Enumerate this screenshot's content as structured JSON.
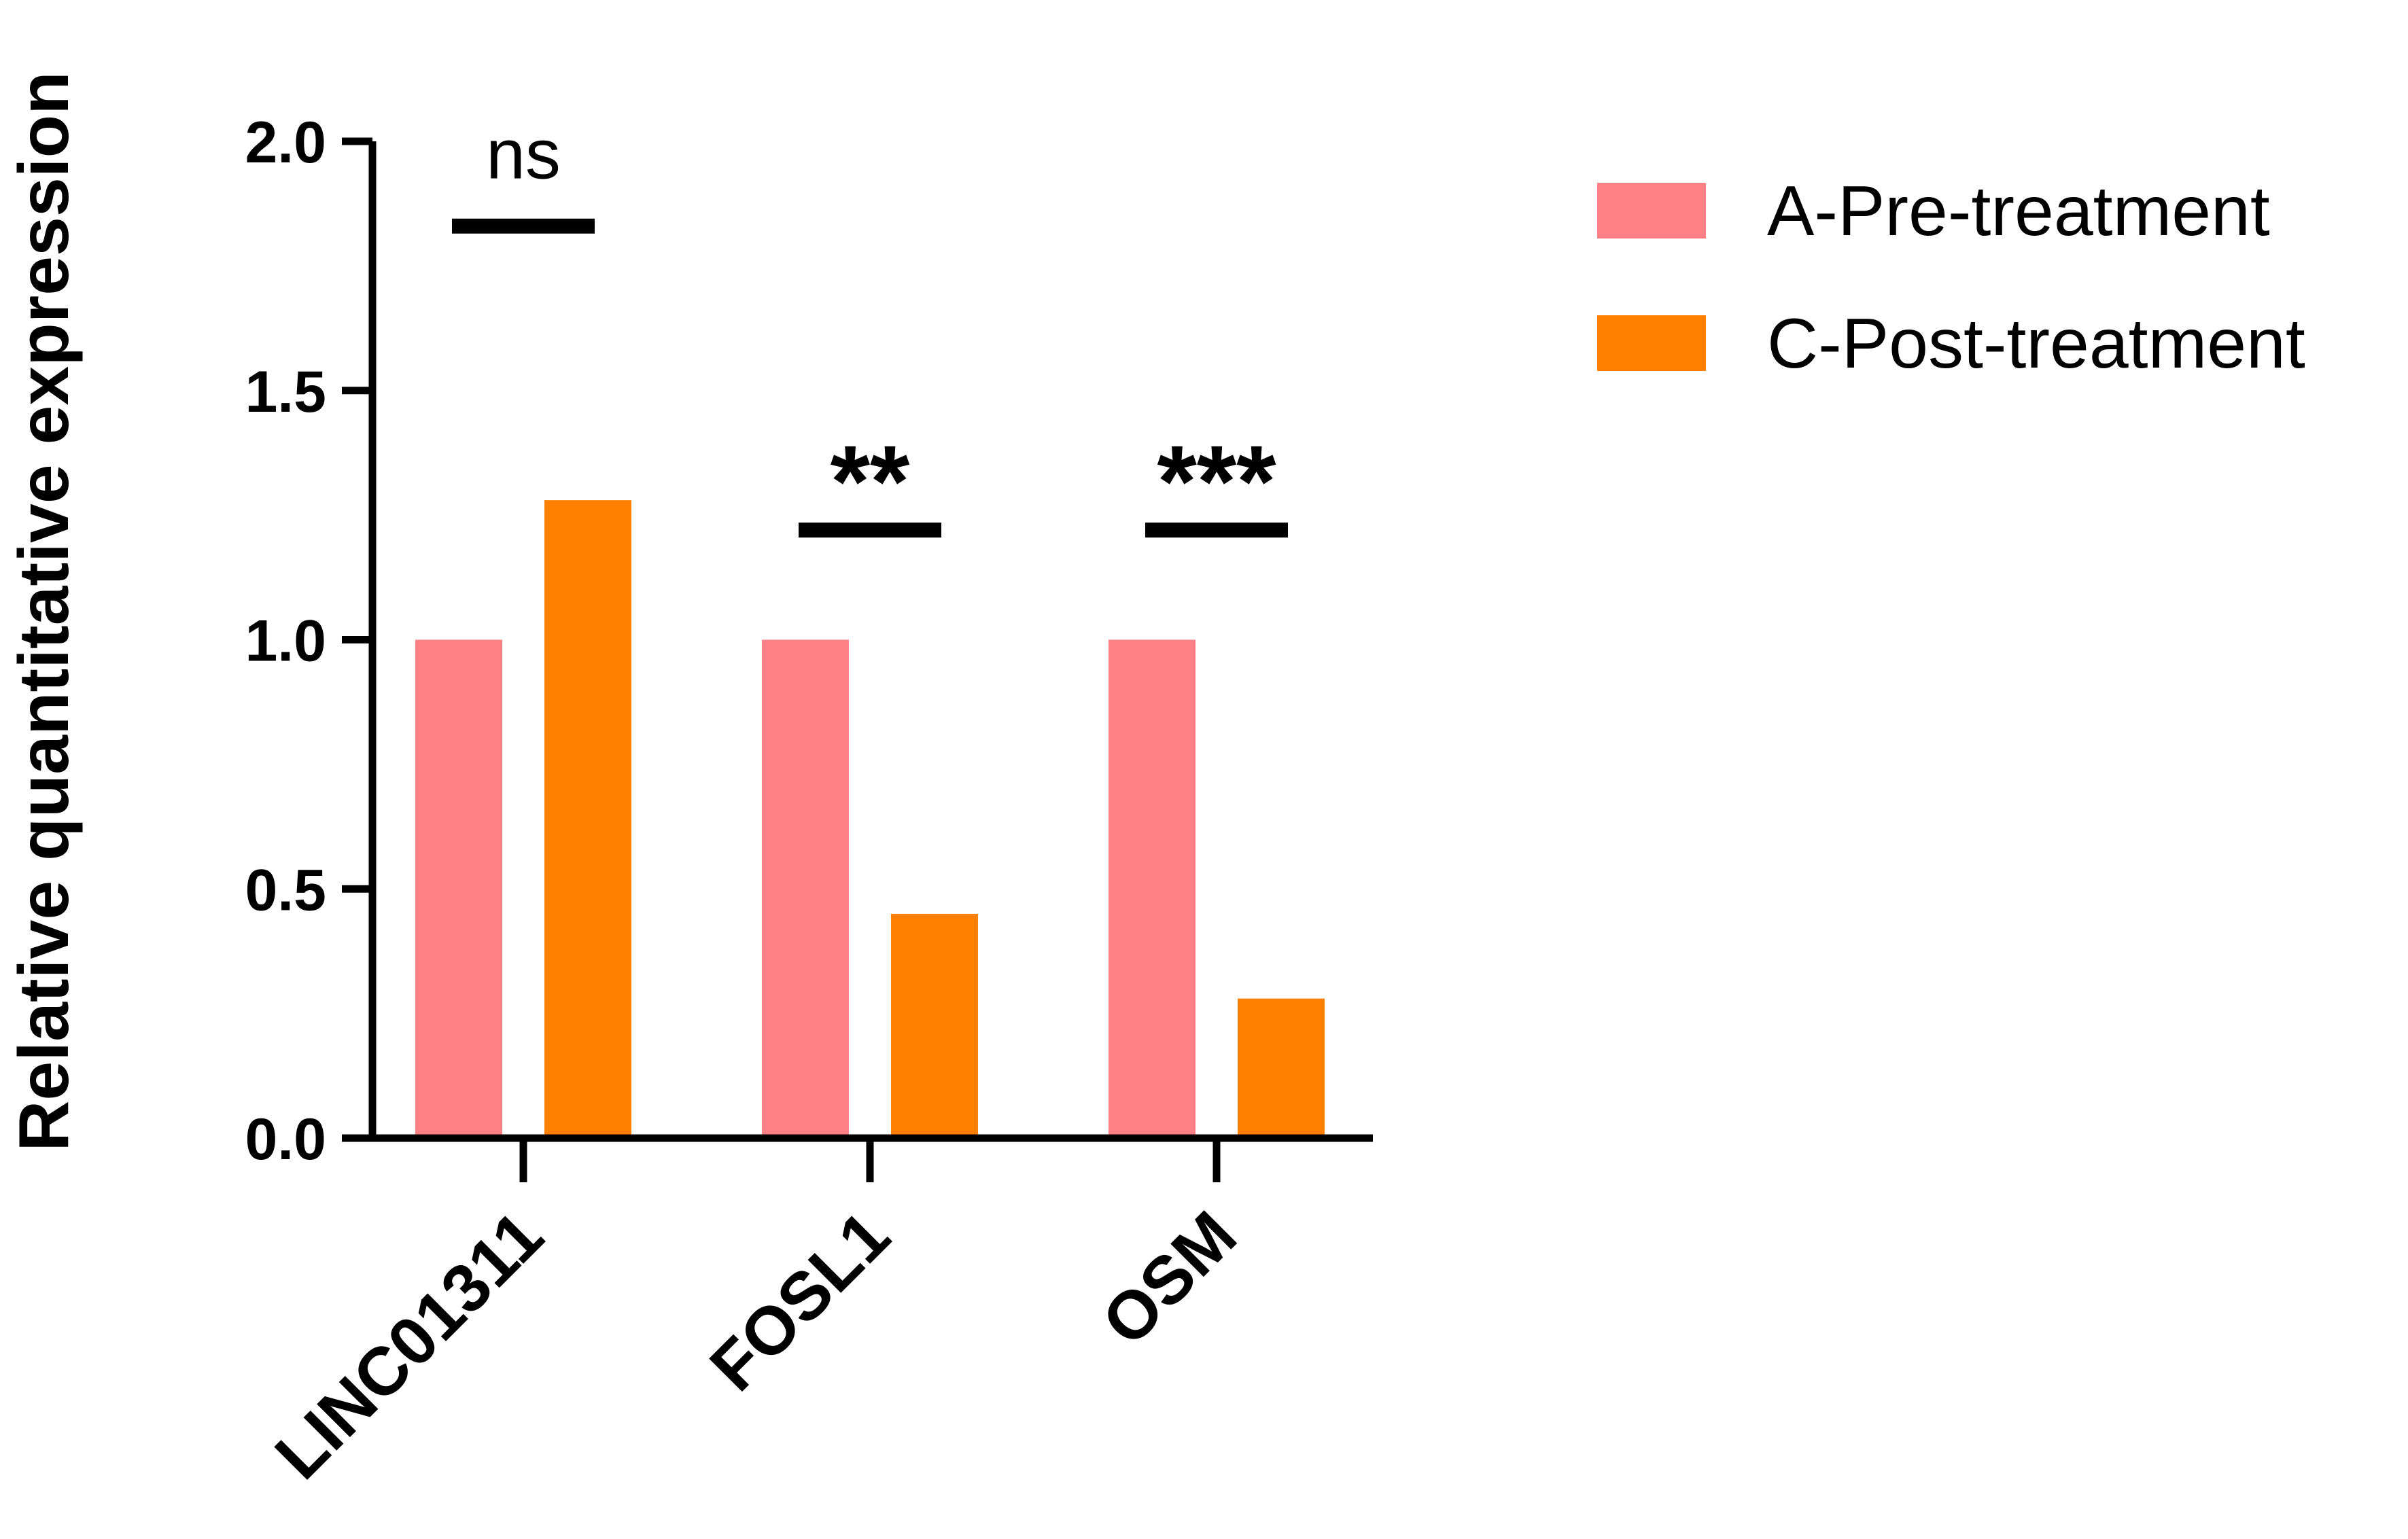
{
  "chart_data": {
    "type": "bar",
    "ylabel": "Relative quantitative expression",
    "xlabel": "",
    "ylim": [
      0,
      2.0
    ],
    "yticks": [
      "0.0",
      "0.5",
      "1.0",
      "1.5",
      "2.0"
    ],
    "categories": [
      "LINC01311",
      "FOSL1",
      "OSM"
    ],
    "series": [
      {
        "name": "A-Pre-treatment",
        "color": "#FF8185",
        "values": [
          1.0,
          1.0,
          1.0
        ]
      },
      {
        "name": "C-Post-treatment",
        "color": "#FF8000",
        "values": [
          1.28,
          0.45,
          0.28
        ]
      }
    ],
    "significance": [
      {
        "category": "LINC01311",
        "label": "ns",
        "level": 1.83
      },
      {
        "category": "FOSL1",
        "label": "**",
        "level": 1.22
      },
      {
        "category": "OSM",
        "label": "***",
        "level": 1.22
      }
    ],
    "legend": "right",
    "grid": false
  }
}
